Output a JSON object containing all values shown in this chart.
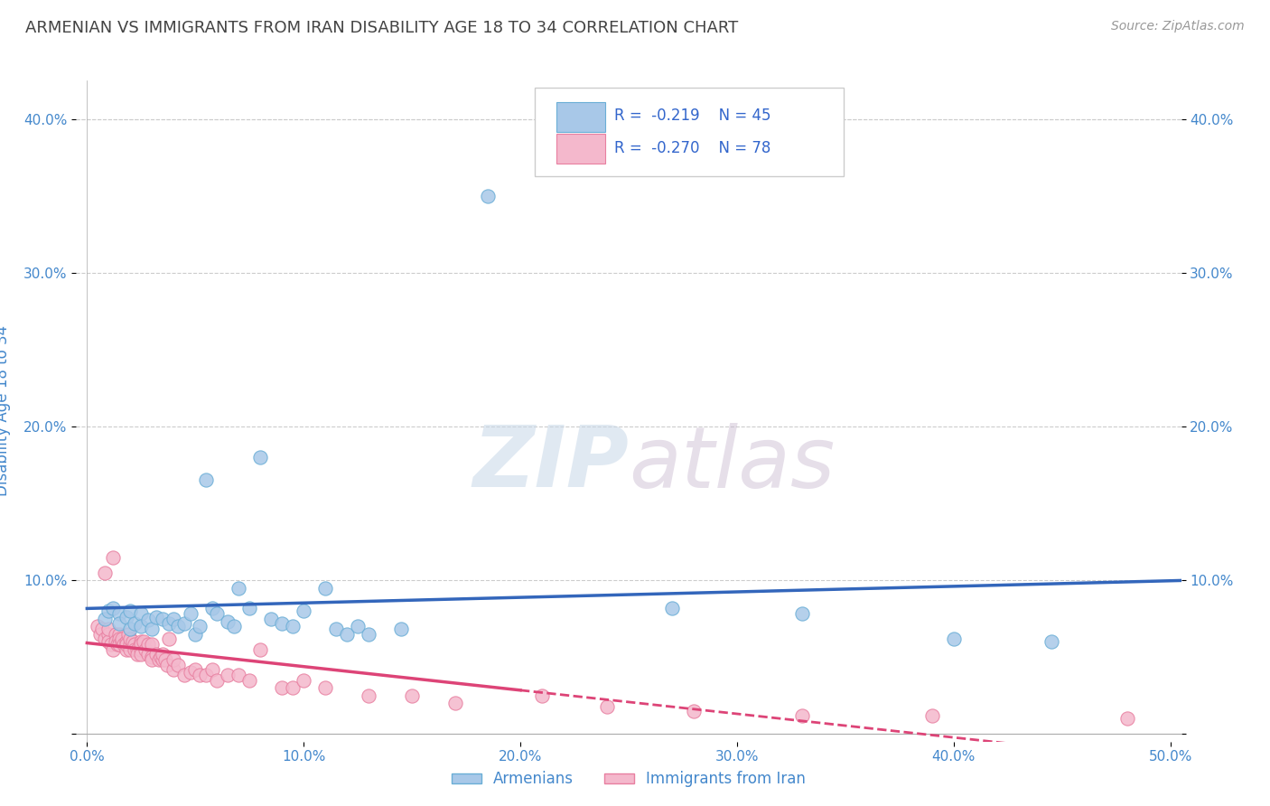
{
  "title": "ARMENIAN VS IMMIGRANTS FROM IRAN DISABILITY AGE 18 TO 34 CORRELATION CHART",
  "source": "Source: ZipAtlas.com",
  "ylabel": "Disability Age 18 to 34",
  "xlim": [
    -0.005,
    0.505
  ],
  "ylim": [
    -0.005,
    0.425
  ],
  "xticks": [
    0.0,
    0.1,
    0.2,
    0.3,
    0.4,
    0.5
  ],
  "xticklabels": [
    "0.0%",
    "10.0%",
    "20.0%",
    "30.0%",
    "40.0%",
    "50.0%"
  ],
  "yticks": [
    0.0,
    0.1,
    0.2,
    0.3,
    0.4
  ],
  "yticklabels_left": [
    "",
    "10.0%",
    "20.0%",
    "30.0%",
    "40.0%"
  ],
  "yticklabels_right": [
    "",
    "10.0%",
    "20.0%",
    "30.0%",
    "40.0%"
  ],
  "armenian_color": "#a8c8e8",
  "iran_color": "#f4b8cc",
  "armenian_edge": "#6aaed6",
  "iran_edge": "#e87fa0",
  "trendline_armenian": "#3366bb",
  "trendline_iran": "#dd4477",
  "legend_R_armenian": "-0.219",
  "legend_N_armenian": "45",
  "legend_R_iran": "-0.270",
  "legend_N_iran": "78",
  "background_color": "#ffffff",
  "grid_color": "#cccccc",
  "title_color": "#444444",
  "axis_label_color": "#4488cc",
  "tick_color": "#4488cc",
  "armenian_x": [
    0.008,
    0.01,
    0.012,
    0.015,
    0.015,
    0.018,
    0.02,
    0.02,
    0.022,
    0.025,
    0.025,
    0.028,
    0.03,
    0.032,
    0.035,
    0.038,
    0.04,
    0.042,
    0.045,
    0.048,
    0.05,
    0.052,
    0.055,
    0.058,
    0.06,
    0.065,
    0.068,
    0.07,
    0.075,
    0.08,
    0.085,
    0.09,
    0.095,
    0.1,
    0.11,
    0.115,
    0.12,
    0.125,
    0.13,
    0.145,
    0.185,
    0.27,
    0.33,
    0.4,
    0.445
  ],
  "armenian_y": [
    0.075,
    0.08,
    0.082,
    0.078,
    0.072,
    0.076,
    0.08,
    0.068,
    0.072,
    0.078,
    0.07,
    0.074,
    0.068,
    0.076,
    0.075,
    0.072,
    0.075,
    0.07,
    0.072,
    0.078,
    0.065,
    0.07,
    0.165,
    0.082,
    0.078,
    0.073,
    0.07,
    0.095,
    0.082,
    0.18,
    0.075,
    0.072,
    0.07,
    0.08,
    0.095,
    0.068,
    0.065,
    0.07,
    0.065,
    0.068,
    0.35,
    0.082,
    0.078,
    0.062,
    0.06
  ],
  "iran_x": [
    0.005,
    0.006,
    0.007,
    0.008,
    0.008,
    0.01,
    0.01,
    0.01,
    0.011,
    0.012,
    0.012,
    0.013,
    0.013,
    0.014,
    0.015,
    0.015,
    0.015,
    0.016,
    0.016,
    0.017,
    0.018,
    0.018,
    0.018,
    0.019,
    0.02,
    0.02,
    0.02,
    0.021,
    0.022,
    0.022,
    0.023,
    0.023,
    0.025,
    0.025,
    0.025,
    0.025,
    0.026,
    0.027,
    0.028,
    0.028,
    0.03,
    0.03,
    0.03,
    0.032,
    0.033,
    0.034,
    0.035,
    0.035,
    0.036,
    0.037,
    0.038,
    0.04,
    0.04,
    0.042,
    0.045,
    0.048,
    0.05,
    0.052,
    0.055,
    0.058,
    0.06,
    0.065,
    0.07,
    0.075,
    0.08,
    0.09,
    0.095,
    0.1,
    0.11,
    0.13,
    0.15,
    0.17,
    0.21,
    0.24,
    0.28,
    0.33,
    0.39,
    0.48
  ],
  "iran_y": [
    0.07,
    0.065,
    0.068,
    0.062,
    0.105,
    0.065,
    0.06,
    0.068,
    0.058,
    0.115,
    0.055,
    0.065,
    0.06,
    0.058,
    0.065,
    0.062,
    0.058,
    0.06,
    0.062,
    0.058,
    0.055,
    0.06,
    0.058,
    0.065,
    0.058,
    0.055,
    0.062,
    0.06,
    0.058,
    0.055,
    0.055,
    0.052,
    0.06,
    0.055,
    0.058,
    0.052,
    0.06,
    0.055,
    0.052,
    0.058,
    0.05,
    0.058,
    0.048,
    0.052,
    0.048,
    0.05,
    0.048,
    0.052,
    0.048,
    0.045,
    0.062,
    0.042,
    0.048,
    0.045,
    0.038,
    0.04,
    0.042,
    0.038,
    0.038,
    0.042,
    0.035,
    0.038,
    0.038,
    0.035,
    0.055,
    0.03,
    0.03,
    0.035,
    0.03,
    0.025,
    0.025,
    0.02,
    0.025,
    0.018,
    0.015,
    0.012,
    0.012,
    0.01
  ]
}
